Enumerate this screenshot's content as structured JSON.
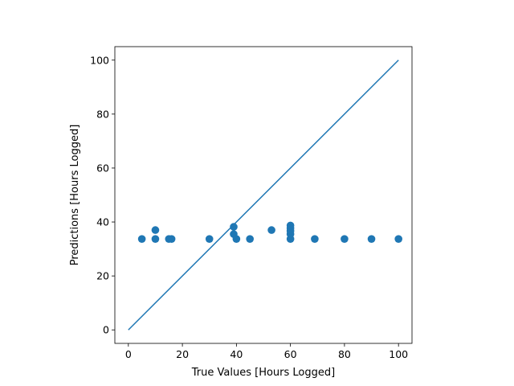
{
  "chart_data": {
    "type": "scatter",
    "xlabel": "True Values [Hours Logged]",
    "ylabel": "Predictions [Hours Logged]",
    "xlim": [
      -5,
      105
    ],
    "ylim": [
      -5,
      105
    ],
    "xticks": [
      0,
      20,
      40,
      60,
      80,
      100
    ],
    "yticks": [
      0,
      20,
      40,
      60,
      80,
      100
    ],
    "grid": false,
    "colors": {
      "points": "#1f77b4",
      "line": "#1f77b4",
      "axes": "#000000"
    },
    "series": [
      {
        "type": "scatter",
        "points": [
          {
            "x": 5,
            "y": 33.7
          },
          {
            "x": 10,
            "y": 33.7
          },
          {
            "x": 10,
            "y": 37.0
          },
          {
            "x": 15,
            "y": 33.7
          },
          {
            "x": 16,
            "y": 33.7
          },
          {
            "x": 30,
            "y": 33.7
          },
          {
            "x": 39,
            "y": 38.2
          },
          {
            "x": 39,
            "y": 35.5
          },
          {
            "x": 40,
            "y": 33.7
          },
          {
            "x": 45,
            "y": 33.7
          },
          {
            "x": 53,
            "y": 37.0
          },
          {
            "x": 60,
            "y": 33.7
          },
          {
            "x": 60,
            "y": 35.5
          },
          {
            "x": 60,
            "y": 36.7
          },
          {
            "x": 60,
            "y": 37.7
          },
          {
            "x": 60,
            "y": 38.7
          },
          {
            "x": 69,
            "y": 33.7
          },
          {
            "x": 80,
            "y": 33.7
          },
          {
            "x": 90,
            "y": 33.7
          },
          {
            "x": 100,
            "y": 33.7
          }
        ]
      },
      {
        "type": "line",
        "points": [
          {
            "x": 0,
            "y": 0
          },
          {
            "x": 100,
            "y": 100
          }
        ]
      }
    ]
  }
}
